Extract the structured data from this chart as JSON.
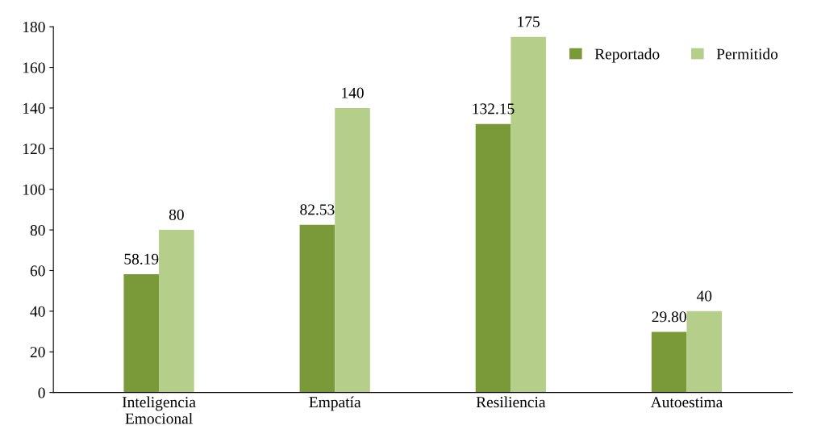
{
  "chart_data": {
    "type": "bar",
    "categories": [
      "Inteligencia\nEmocional",
      "Empatía",
      "Resiliencia",
      "Autoestima"
    ],
    "series": [
      {
        "name": "Reportado",
        "color": "#7a9a3a",
        "values": [
          58.19,
          82.53,
          132.15,
          29.8
        ],
        "value_labels": [
          "58.19",
          "82.53",
          "132.15",
          "29.80"
        ]
      },
      {
        "name": "Permitido",
        "color": "#b5cf8a",
        "values": [
          80,
          140,
          175,
          40
        ],
        "value_labels": [
          "80",
          "140",
          "175",
          "40"
        ]
      }
    ],
    "ylim": [
      0,
      180
    ],
    "yticks": [
      0,
      20,
      40,
      60,
      80,
      100,
      120,
      140,
      160,
      180
    ],
    "grid": false,
    "legend": "top right"
  }
}
